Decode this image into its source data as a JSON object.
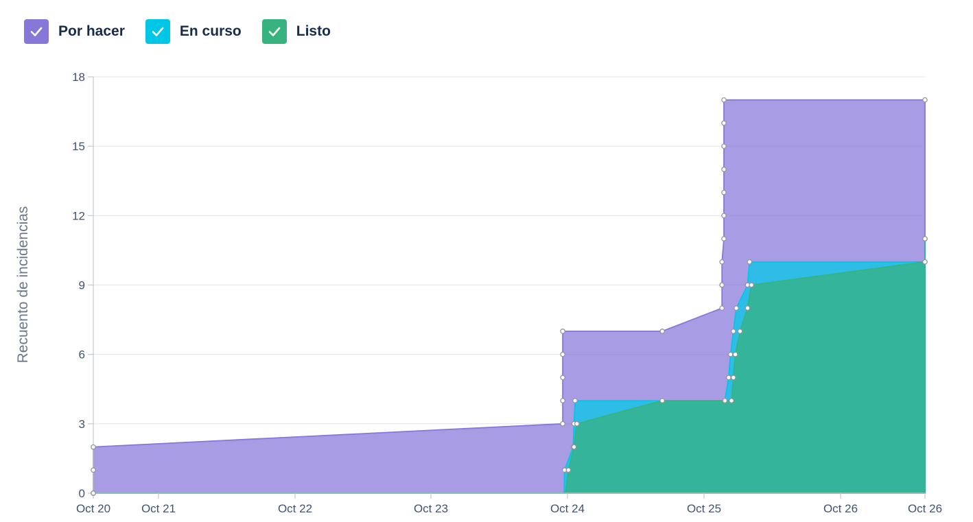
{
  "legend": [
    {
      "label": "Por hacer",
      "color": "#8777d9",
      "icon": "check-icon"
    },
    {
      "label": "En curso",
      "color": "#00c7e6",
      "icon": "check-icon"
    },
    {
      "label": "Listo",
      "color": "#36b37e",
      "icon": "check-icon"
    }
  ],
  "chart_data": {
    "type": "area",
    "stacked": true,
    "step": true,
    "ylabel": "Recuento de incidencias",
    "ylim": [
      0,
      18
    ],
    "yticks": [
      0,
      3,
      6,
      9,
      12,
      15,
      18
    ],
    "xlim": [
      "Oct 20",
      "Oct 26"
    ],
    "xticks": [
      "Oct 20",
      "Oct 21",
      "Oct 22",
      "Oct 23",
      "Oct 24",
      "Oct 25",
      "Oct 26",
      "Oct 26"
    ],
    "grid": true,
    "legend_position": "top-left",
    "series": [
      {
        "name": "Por hacer",
        "color": "#8777d9",
        "points": [
          [
            "Oct 20 00:00",
            0
          ],
          [
            "Oct 20 00:00",
            1
          ],
          [
            "Oct 20 00:00",
            2
          ],
          [
            "Oct 23 10:30",
            3
          ],
          [
            "Oct 23 10:30",
            4
          ],
          [
            "Oct 23 10:30",
            5
          ],
          [
            "Oct 23 10:30",
            6
          ],
          [
            "Oct 23 10:30",
            7
          ],
          [
            "Oct 24 04:00",
            7
          ],
          [
            "Oct 24 14:30",
            8
          ],
          [
            "Oct 24 14:30",
            9
          ],
          [
            "Oct 24 14:30",
            10
          ],
          [
            "Oct 24 14:50",
            11
          ],
          [
            "Oct 24 14:50",
            12
          ],
          [
            "Oct 24 14:50",
            13
          ],
          [
            "Oct 24 14:50",
            14
          ],
          [
            "Oct 24 14:50",
            15
          ],
          [
            "Oct 24 14:50",
            16
          ],
          [
            "Oct 24 14:50",
            17
          ],
          [
            "Oct 26 15:00",
            17
          ]
        ]
      },
      {
        "name": "En curso",
        "color": "#00c7e6",
        "points": [
          [
            "Oct 20 00:00",
            0
          ],
          [
            "Oct 23 10:45",
            0
          ],
          [
            "Oct 23 10:50",
            1
          ],
          [
            "Oct 23 12:20",
            2
          ],
          [
            "Oct 23 12:30",
            3
          ],
          [
            "Oct 23 12:40",
            4
          ],
          [
            "Oct 24 15:00",
            4
          ],
          [
            "Oct 24 15:40",
            5
          ],
          [
            "Oct 24 16:00",
            6
          ],
          [
            "Oct 24 16:30",
            7
          ],
          [
            "Oct 24 17:00",
            8
          ],
          [
            "Oct 24 19:00",
            9
          ],
          [
            "Oct 24 19:20",
            10
          ],
          [
            "Oct 26 06:00",
            10
          ],
          [
            "Oct 26 06:10",
            11
          ],
          [
            "Oct 26 15:00",
            11
          ]
        ]
      },
      {
        "name": "Listo",
        "color": "#36b37e",
        "points": [
          [
            "Oct 20 00:00",
            0
          ],
          [
            "Oct 23 11:00",
            0
          ],
          [
            "Oct 23 11:30",
            1
          ],
          [
            "Oct 23 12:30",
            2
          ],
          [
            "Oct 23 13:00",
            3
          ],
          [
            "Oct 24 04:00",
            4
          ],
          [
            "Oct 24 16:10",
            4
          ],
          [
            "Oct 24 16:30",
            5
          ],
          [
            "Oct 24 16:50",
            6
          ],
          [
            "Oct 24 17:40",
            7
          ],
          [
            "Oct 24 19:00",
            8
          ],
          [
            "Oct 24 19:40",
            9
          ],
          [
            "Oct 26 06:00",
            10
          ],
          [
            "Oct 26 15:00",
            11
          ]
        ]
      }
    ]
  }
}
